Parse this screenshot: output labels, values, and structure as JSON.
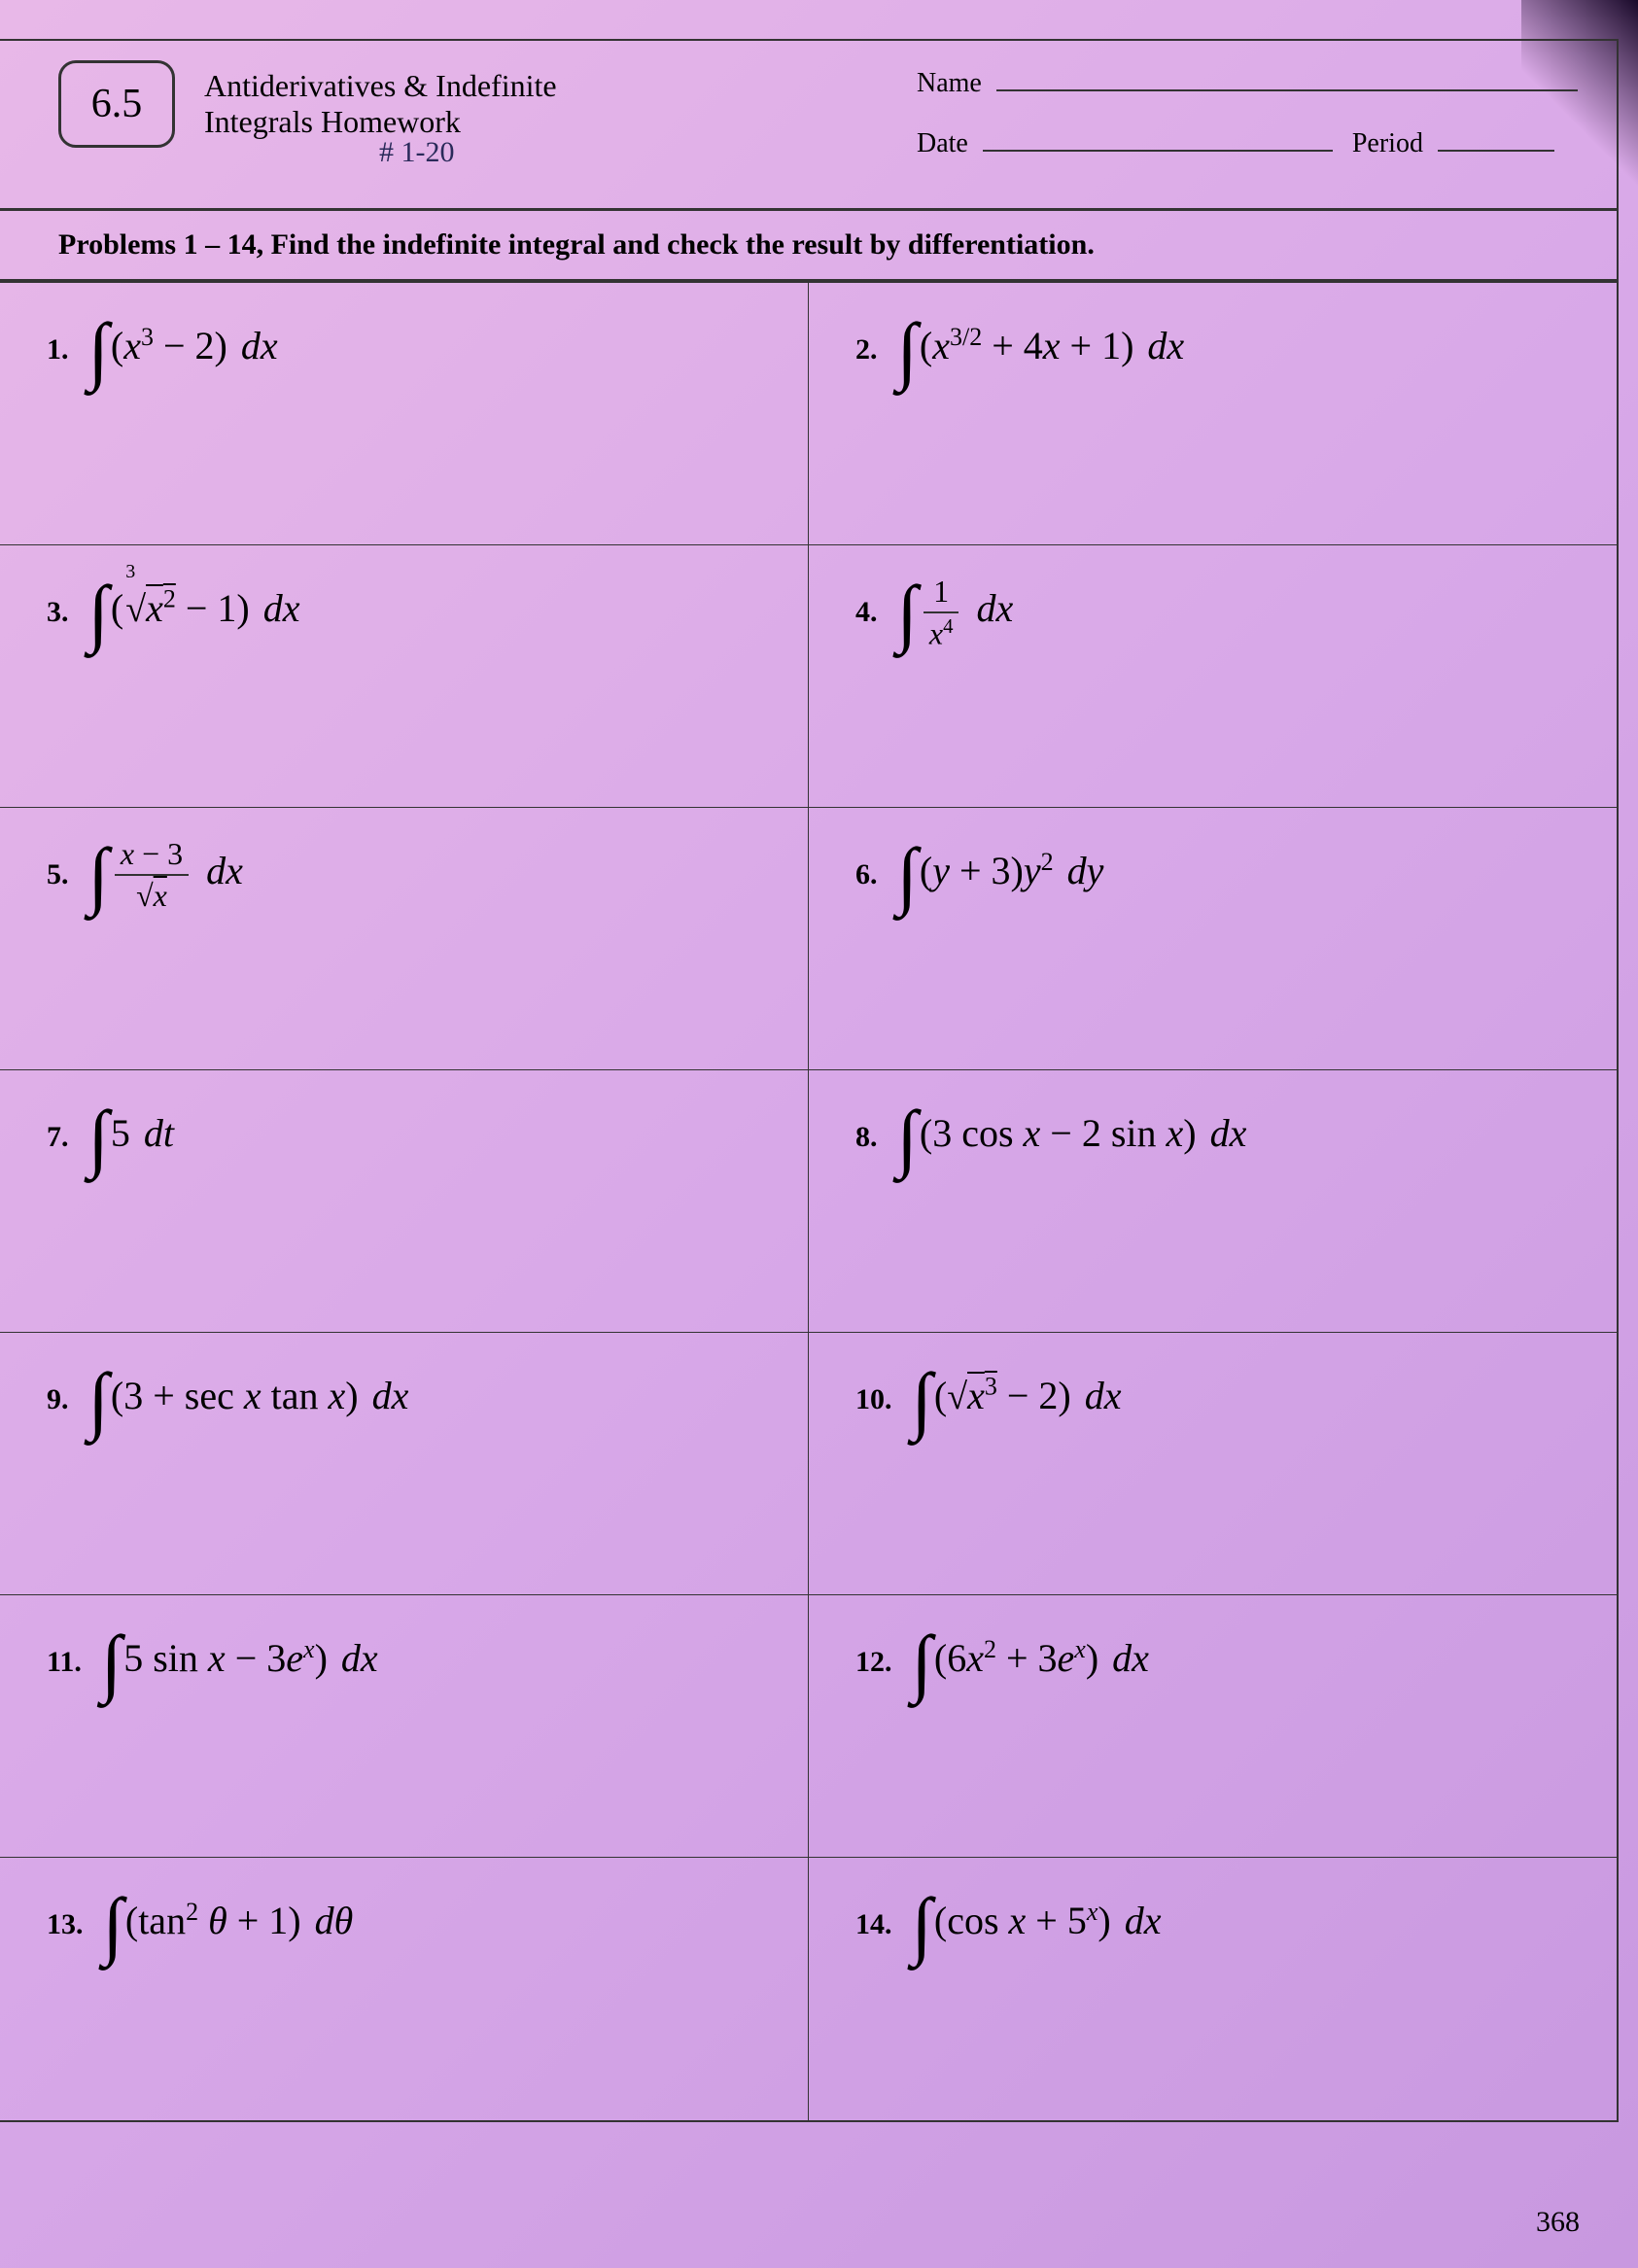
{
  "section_number": "6.5",
  "title_line1": "Antiderivatives & Indefinite",
  "title_line2": "Integrals Homework",
  "handwritten_note": "# 1-20",
  "name_label": "Name",
  "date_label": "Date",
  "period_label": "Period",
  "instructions": "Problems 1 – 14, Find the indefinite integral and check the result by differentiation.",
  "page_number": "368",
  "problems": [
    {
      "num": "1.",
      "expr_html": "<span class='int-sign'>∫</span>(<i>x</i><sup>3</sup> − 2) <span class='dx'>dx</span>"
    },
    {
      "num": "2.",
      "expr_html": "<span class='int-sign'>∫</span>(<i>x</i><sup>3/2</sup> + 4<i>x</i> + 1) <span class='dx'>dx</span>"
    },
    {
      "num": "3.",
      "expr_html": "<span class='int-sign'>∫</span>(<span class='root-index'>3</span><span class='sqrt-sym'>√</span><span class='overline'><i>x</i><sup>2</sup></span> − 1) <span class='dx'>dx</span>"
    },
    {
      "num": "4.",
      "expr_html": "<span class='int-sign'>∫</span><span class='frac'><span class='frac-num'>1</span><span class='frac-den'><i>x</i><sup>4</sup></span></span> <span class='dx'>dx</span>"
    },
    {
      "num": "5.",
      "expr_html": "<span class='int-sign'>∫</span><span class='frac'><span class='frac-num'><i>x</i> − 3</span><span class='frac-den'>√<span class='overline'><i>x</i></span></span></span> <span class='dx'>dx</span>"
    },
    {
      "num": "6.",
      "expr_html": "<span class='int-sign'>∫</span>(<i>y</i> + 3)<i>y</i><sup>2</sup> <span class='dx'>dy</span>"
    },
    {
      "num": "7.",
      "expr_html": "<span class='int-sign'>∫</span>5 <span class='dx'>dt</span>"
    },
    {
      "num": "8.",
      "expr_html": "<span class='int-sign'>∫</span>(3 cos <i>x</i> − 2 sin <i>x</i>) <span class='dx'>dx</span>"
    },
    {
      "num": "9.",
      "expr_html": "<span class='int-sign'>∫</span>(3 + sec <i>x</i> tan <i>x</i>) <span class='dx'>dx</span>"
    },
    {
      "num": "10.",
      "expr_html": "<span class='int-sign'>∫</span>(<span class='sqrt-sym'>√</span><span class='overline'><i>x</i><sup>3</sup></span> − 2) <span class='dx'>dx</span>"
    },
    {
      "num": "11.",
      "expr_html": "<span class='int-sign'>∫</span>5 sin <i>x</i> − 3<i>e</i><sup><i>x</i></sup>) <span class='dx'>dx</span>"
    },
    {
      "num": "12.",
      "expr_html": "<span class='int-sign'>∫</span>(6<i>x</i><sup>2</sup> + 3<i>e</i><sup><i>x</i></sup>) <span class='dx'>dx</span>"
    },
    {
      "num": "13.",
      "expr_html": "<span class='int-sign'>∫</span>(tan<sup>2</sup> <i>θ</i> + 1) <span class='dx'>dθ</span>"
    },
    {
      "num": "14.",
      "expr_html": "<span class='int-sign'>∫</span>(cos <i>x</i> + 5<sup><i>x</i></sup>) <span class='dx'>dx</span>"
    }
  ]
}
